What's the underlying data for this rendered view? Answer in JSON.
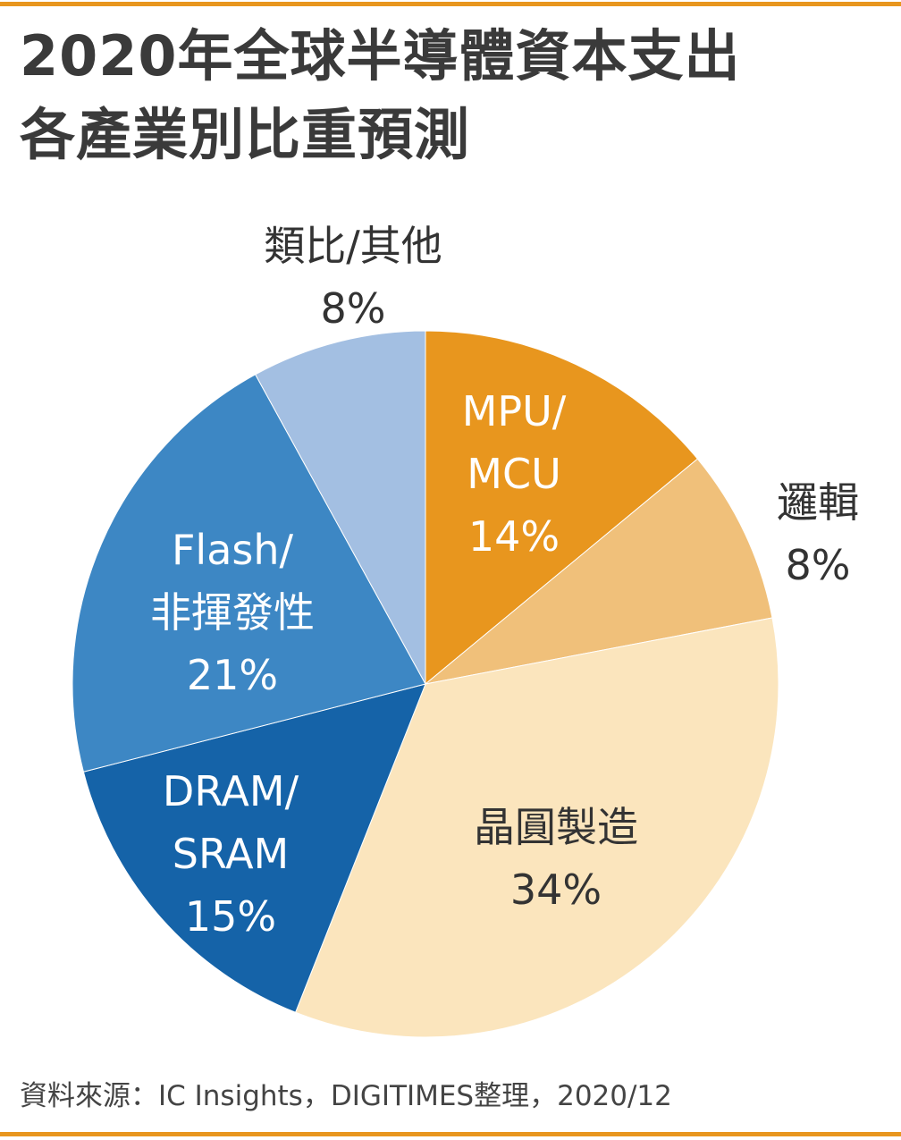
{
  "chart_data": {
    "type": "pie",
    "title": [
      "2020年全球半導體資本支出",
      "各產業別比重預測"
    ],
    "categories": [
      "MPU/\nMCU",
      "邏輯",
      "晶圓製造",
      "DRAM/\nSRAM",
      "Flash/\n非揮發性",
      "類比/其他"
    ],
    "values": [
      14,
      8,
      34,
      15,
      21,
      8
    ],
    "value_labels": [
      "14%",
      "8%",
      "34%",
      "15%",
      "21%",
      "8%"
    ],
    "colors": [
      "#e8961e",
      "#f0c07a",
      "#fbe5bd",
      "#1563a8",
      "#3d87c4",
      "#a3bfe2"
    ],
    "source": "資料來源：IC Insights，DIGITIMES整理，2020/12"
  }
}
